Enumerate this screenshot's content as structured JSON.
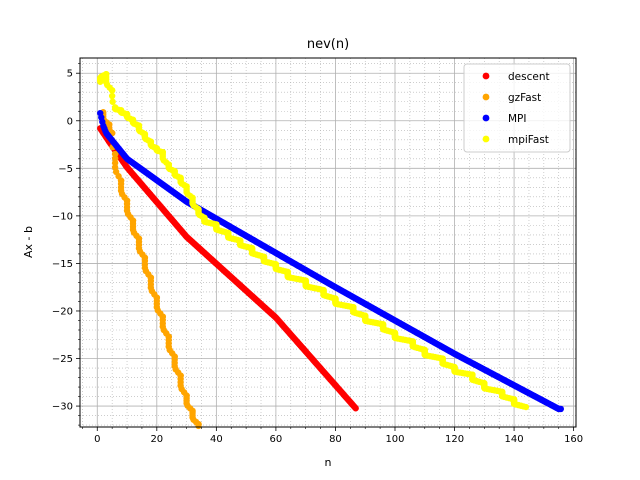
{
  "chart_data": {
    "type": "scatter",
    "title": "nev(n)",
    "xlabel": "n",
    "ylabel": "Ax - b",
    "xlim": [
      -5.8,
      160.8
    ],
    "ylim": [
      -32.2,
      6.6
    ],
    "xticks": [
      0,
      20,
      40,
      60,
      80,
      100,
      120,
      140,
      160
    ],
    "yticks": [
      5,
      0,
      -5,
      -10,
      -15,
      -20,
      -25,
      -30
    ],
    "x_minor_step": 5,
    "y_minor_step": 1,
    "grid": true,
    "legend_position": "top-right",
    "series": [
      {
        "name": "descent",
        "color": "#ff0000",
        "kind": "line-points",
        "x_start": 1,
        "x_end": 87,
        "x_step": 0.3,
        "segments": [
          [
            1,
            -0.8
          ],
          [
            4,
            -2.2
          ],
          [
            10,
            -4.9
          ],
          [
            30,
            -12.2
          ],
          [
            60,
            -20.7
          ],
          [
            87,
            -30.3
          ]
        ]
      },
      {
        "name": "gzFast",
        "color": "#ffa500",
        "kind": "steps",
        "points": [
          [
            2,
            0.9
          ],
          [
            4,
            -0.4
          ],
          [
            5,
            -1.3
          ],
          [
            6,
            -3.5
          ],
          [
            8,
            -6.3
          ],
          [
            10,
            -8.4
          ],
          [
            12,
            -10.5
          ],
          [
            14,
            -12.4
          ],
          [
            16,
            -14.4
          ],
          [
            18,
            -16.5
          ],
          [
            20,
            -18.6
          ],
          [
            22,
            -20.6
          ],
          [
            24,
            -22.7
          ],
          [
            26,
            -24.8
          ],
          [
            28,
            -26.8
          ],
          [
            30,
            -28.9
          ],
          [
            32,
            -30.5
          ],
          [
            34,
            -31.9
          ],
          [
            36,
            -33.0
          ]
        ]
      },
      {
        "name": "MPI",
        "color": "#0000ff",
        "kind": "line-points",
        "x_start": 1,
        "x_end": 156,
        "x_step": 0.35,
        "segments": [
          [
            1,
            0.8
          ],
          [
            2,
            -0.5
          ],
          [
            3,
            -1.3
          ],
          [
            10,
            -4.0
          ],
          [
            30,
            -8.5
          ],
          [
            80,
            -17.5
          ],
          [
            120,
            -24.5
          ],
          [
            155,
            -30.3
          ]
        ]
      },
      {
        "name": "mpiFast",
        "color": "#ffff00",
        "kind": "steps",
        "points": [
          [
            1,
            4.1
          ],
          [
            3,
            4.9
          ],
          [
            5,
            3.2
          ],
          [
            6,
            1.4
          ],
          [
            8,
            1.1
          ],
          [
            10,
            0.7
          ],
          [
            12,
            0.1
          ],
          [
            14,
            -0.5
          ],
          [
            16,
            -1.4
          ],
          [
            18,
            -2.2
          ],
          [
            20,
            -2.9
          ],
          [
            22,
            -3.3
          ],
          [
            24,
            -4.6
          ],
          [
            26,
            -5.3
          ],
          [
            28,
            -6.0
          ],
          [
            30,
            -6.9
          ],
          [
            32,
            -8.1
          ],
          [
            34,
            -9.3
          ],
          [
            36,
            -10.2
          ],
          [
            40,
            -10.9
          ],
          [
            44,
            -11.8
          ],
          [
            48,
            -12.6
          ],
          [
            52,
            -13.4
          ],
          [
            56,
            -14.3
          ],
          [
            60,
            -15.1
          ],
          [
            64,
            -15.9
          ],
          [
            70,
            -16.8
          ],
          [
            76,
            -17.8
          ],
          [
            80,
            -18.7
          ],
          [
            86,
            -19.6
          ],
          [
            90,
            -20.5
          ],
          [
            96,
            -21.4
          ],
          [
            100,
            -22.3
          ],
          [
            106,
            -23.2
          ],
          [
            110,
            -24.1
          ],
          [
            116,
            -25.0
          ],
          [
            120,
            -25.9
          ],
          [
            126,
            -26.7
          ],
          [
            130,
            -27.6
          ],
          [
            136,
            -28.5
          ],
          [
            140,
            -29.3
          ],
          [
            144,
            -30.1
          ]
        ]
      }
    ]
  }
}
